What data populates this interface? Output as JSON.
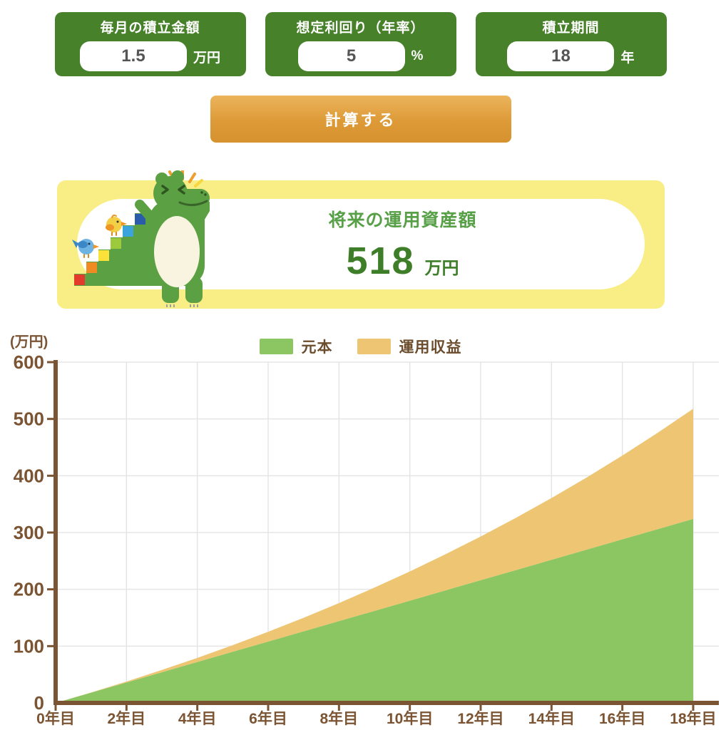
{
  "inputs": [
    {
      "label": "毎月の積立金額",
      "value": "1.5",
      "unit": "万円"
    },
    {
      "label": "想定利回り（年率）",
      "value": "5",
      "unit": "%"
    },
    {
      "label": "積立期間",
      "value": "18",
      "unit": "年"
    }
  ],
  "calculate_button": {
    "label": "計算する"
  },
  "result": {
    "title": "将来の運用資産額",
    "value": "518",
    "unit": "万円"
  },
  "chart_data": {
    "type": "area",
    "stacked": true,
    "ylabel": "(万円)",
    "ylim": [
      0,
      600
    ],
    "y_ticks": [
      0,
      100,
      200,
      300,
      400,
      500,
      600
    ],
    "x_years": [
      0,
      1,
      2,
      3,
      4,
      5,
      6,
      7,
      8,
      9,
      10,
      11,
      12,
      13,
      14,
      15,
      16,
      17,
      18
    ],
    "x_tick_years": [
      0,
      2,
      4,
      6,
      8,
      10,
      12,
      14,
      16,
      18
    ],
    "x_tick_labels": [
      "0年目",
      "2年目",
      "4年目",
      "6年目",
      "8年目",
      "10年目",
      "12年目",
      "14年目",
      "16年目",
      "18年目"
    ],
    "grid": true,
    "legend_position": "top",
    "series": [
      {
        "name": "元本",
        "color": "#8cc663",
        "values": [
          0,
          18,
          36,
          54,
          72,
          90,
          108,
          126,
          144,
          162,
          180,
          198,
          216,
          234,
          252,
          270,
          288,
          306,
          324
        ]
      },
      {
        "name": "運用収益",
        "color": "#eec572",
        "values": [
          0,
          0.4,
          1.7,
          4.0,
          7.3,
          11.7,
          17.2,
          23.9,
          31.8,
          41.0,
          51.5,
          63.5,
          77.0,
          92.1,
          108.8,
          127.2,
          147.5,
          169.7,
          193.9
        ]
      }
    ],
    "totals": [
      0,
      18.4,
      37.7,
      58.0,
      79.3,
      101.7,
      125.2,
      149.9,
      175.8,
      203.0,
      231.5,
      261.5,
      293.0,
      326.1,
      360.8,
      397.2,
      435.5,
      475.7,
      517.9
    ]
  },
  "colors": {
    "card_green": "#47812a",
    "button_orange": "#dd9a37",
    "button_orange_light": "#ecb45c",
    "panel_yellow": "#f9ee86",
    "result_title_green": "#57a047",
    "result_value_green": "#3e7e29",
    "chart_principal_green": "#8cc663",
    "chart_gain_orange": "#eec572",
    "axis_brown": "#7b5433",
    "legend_text_brown": "#6b4c2c",
    "gridline_gray": "#e5e5e5",
    "input_text_gray": "#555555"
  }
}
